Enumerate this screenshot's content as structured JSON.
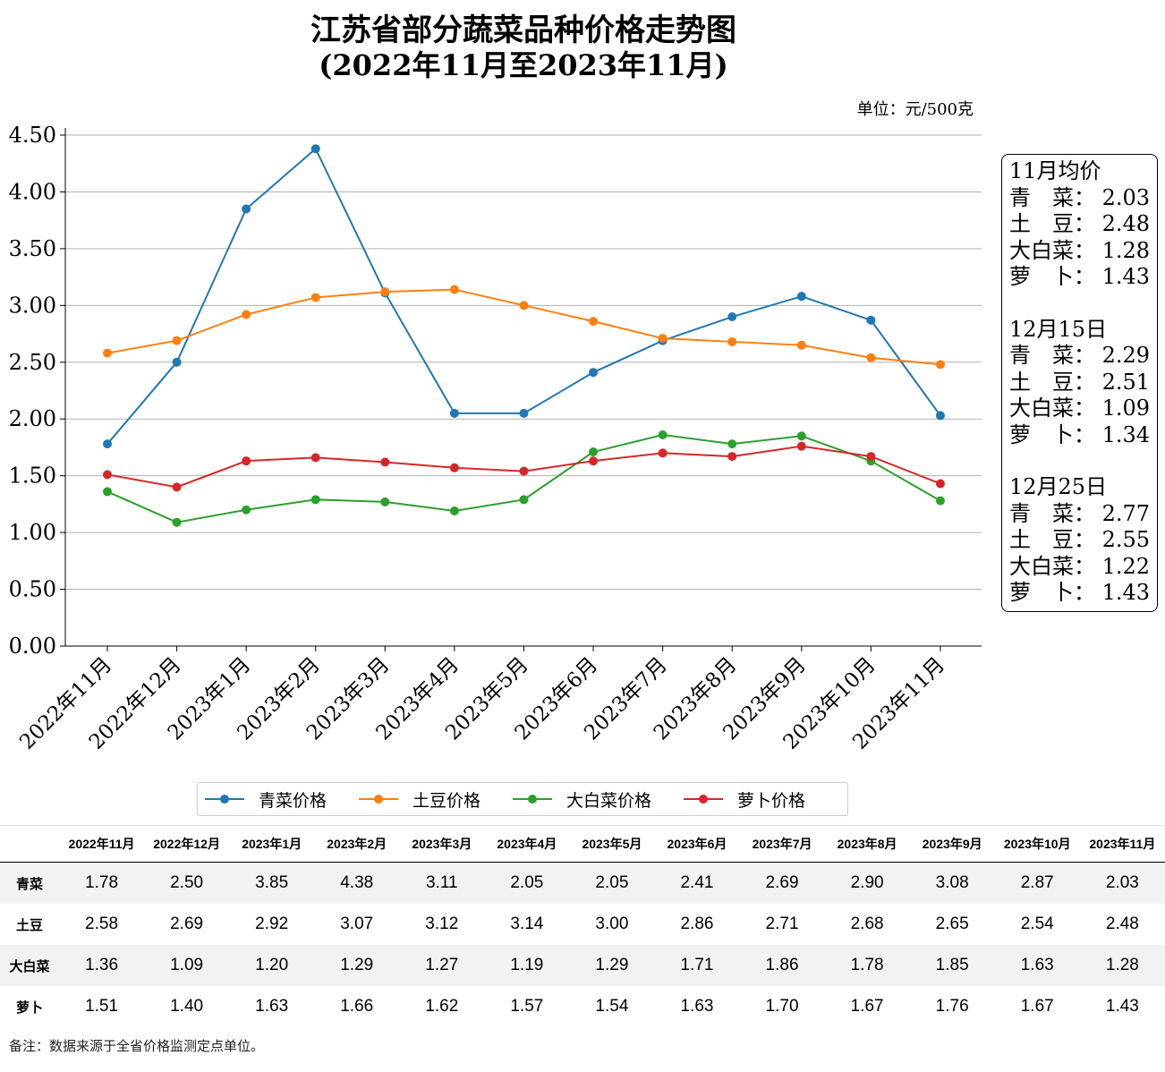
{
  "title_line1": "江苏省部分蔬菜品种价格走势图",
  "title_line2": "(2022年11月至2023年11月)",
  "unit": "单位：元/500克",
  "chart_data": {
    "type": "line",
    "categories": [
      "2022年11月",
      "2022年12月",
      "2023年1月",
      "2023年2月",
      "2023年3月",
      "2023年4月",
      "2023年5月",
      "2023年6月",
      "2023年7月",
      "2023年8月",
      "2023年9月",
      "2023年10月",
      "2023年11月"
    ],
    "ylim": [
      0,
      4.5
    ],
    "yticks": [
      "0.00",
      "0.50",
      "1.00",
      "1.50",
      "2.00",
      "2.50",
      "3.00",
      "3.50",
      "4.00",
      "4.50"
    ],
    "grid": "horizontal",
    "legend_position": "bottom",
    "series": [
      {
        "name": "青菜价格",
        "color": "#1f77b4",
        "values": [
          1.78,
          2.5,
          3.85,
          4.38,
          3.11,
          2.05,
          2.05,
          2.41,
          2.69,
          2.9,
          3.08,
          2.87,
          2.03
        ]
      },
      {
        "name": "土豆价格",
        "color": "#ff7f0e",
        "values": [
          2.58,
          2.69,
          2.92,
          3.07,
          3.12,
          3.14,
          3.0,
          2.86,
          2.71,
          2.68,
          2.65,
          2.54,
          2.48
        ]
      },
      {
        "name": "大白菜价格",
        "color": "#2ca02c",
        "values": [
          1.36,
          1.09,
          1.2,
          1.29,
          1.27,
          1.19,
          1.29,
          1.71,
          1.86,
          1.78,
          1.85,
          1.63,
          1.28
        ]
      },
      {
        "name": "萝卜价格",
        "color": "#d62728",
        "values": [
          1.51,
          1.4,
          1.63,
          1.66,
          1.62,
          1.57,
          1.54,
          1.63,
          1.7,
          1.67,
          1.76,
          1.67,
          1.43
        ]
      }
    ]
  },
  "infobox": {
    "groups": [
      {
        "heading": "11月均价",
        "rows": [
          {
            "label": "青　菜：",
            "value": "2.03"
          },
          {
            "label": "土　豆：",
            "value": "2.48"
          },
          {
            "label": "大白菜：",
            "value": "1.28"
          },
          {
            "label": "萝　卜：",
            "value": "1.43"
          }
        ]
      },
      {
        "heading": "12月15日",
        "rows": [
          {
            "label": "青　菜：",
            "value": "2.29"
          },
          {
            "label": "土　豆：",
            "value": "2.51"
          },
          {
            "label": "大白菜：",
            "value": "1.09"
          },
          {
            "label": "萝　卜：",
            "value": "1.34"
          }
        ]
      },
      {
        "heading": "12月25日",
        "rows": [
          {
            "label": "青　菜：",
            "value": "2.77"
          },
          {
            "label": "土　豆：",
            "value": "2.55"
          },
          {
            "label": "大白菜：",
            "value": "1.22"
          },
          {
            "label": "萝　卜：",
            "value": "1.43"
          }
        ]
      }
    ]
  },
  "table": {
    "row_labels": [
      "青菜",
      "土豆",
      "大白菜",
      "萝卜"
    ],
    "rows": [
      [
        "1.78",
        "2.50",
        "3.85",
        "4.38",
        "3.11",
        "2.05",
        "2.05",
        "2.41",
        "2.69",
        "2.90",
        "3.08",
        "2.87",
        "2.03"
      ],
      [
        "2.58",
        "2.69",
        "2.92",
        "3.07",
        "3.12",
        "3.14",
        "3.00",
        "2.86",
        "2.71",
        "2.68",
        "2.65",
        "2.54",
        "2.48"
      ],
      [
        "1.36",
        "1.09",
        "1.20",
        "1.29",
        "1.27",
        "1.19",
        "1.29",
        "1.71",
        "1.86",
        "1.78",
        "1.85",
        "1.63",
        "1.28"
      ],
      [
        "1.51",
        "1.40",
        "1.63",
        "1.66",
        "1.62",
        "1.57",
        "1.54",
        "1.63",
        "1.70",
        "1.67",
        "1.76",
        "1.67",
        "1.43"
      ]
    ]
  },
  "note": "备注：数据来源于全省价格监测定点单位。"
}
